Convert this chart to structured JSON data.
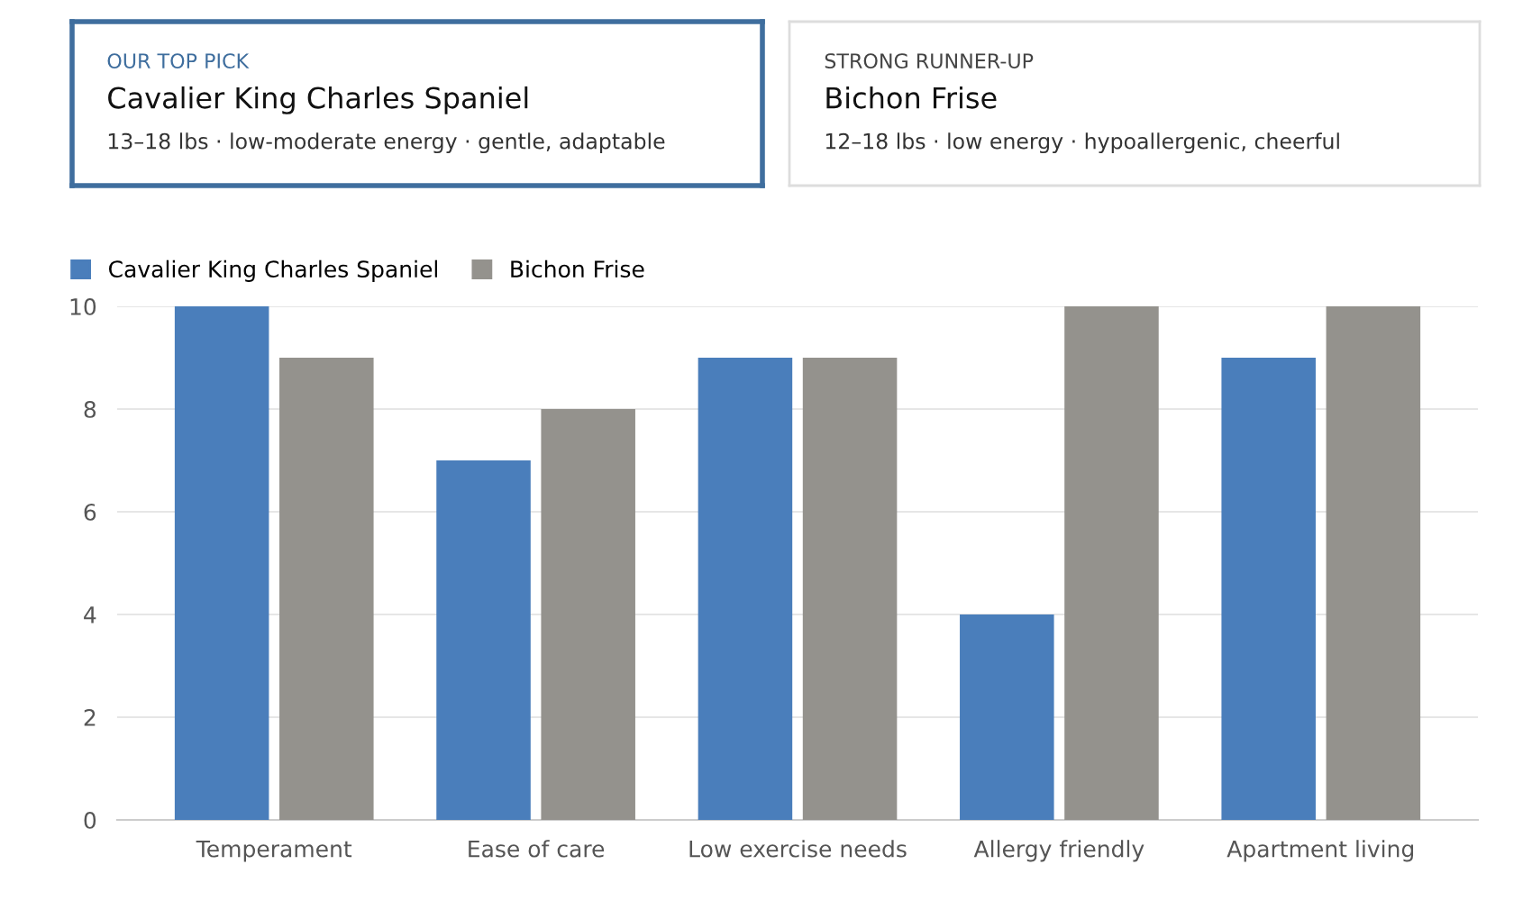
{
  "chart_data": [
    {
      "type": "other",
      "subtitle": "OUR TOP PICK",
      "title": "Cavalier King Charles Spaniel",
      "annotations": [
        "13–18 lbs · low-moderate energy · gentle, adaptable"
      ]
    },
    {
      "type": "other",
      "subtitle": "STRONG RUNNER-UP",
      "title": "Bichon Frise",
      "annotations": [
        "12–18 lbs · low energy · hypoallergenic, cheerful"
      ]
    },
    {
      "type": "bar",
      "categories": [
        "Temperament",
        "Ease of care",
        "Low exercise needs",
        "Allergy friendly",
        "Apartment living"
      ],
      "series": [
        {
          "name": "Cavalier King Charles Spaniel",
          "color": "#4a7ebb",
          "values": [
            10,
            7,
            9,
            4,
            9
          ]
        },
        {
          "name": "Bichon Frise",
          "color": "#94928d",
          "values": [
            9,
            8,
            9,
            10,
            10
          ]
        }
      ],
      "ylim": [
        0,
        10
      ],
      "yticks": [
        0,
        2,
        4,
        6,
        8,
        10
      ],
      "grid": "y",
      "legend": "top left"
    }
  ]
}
